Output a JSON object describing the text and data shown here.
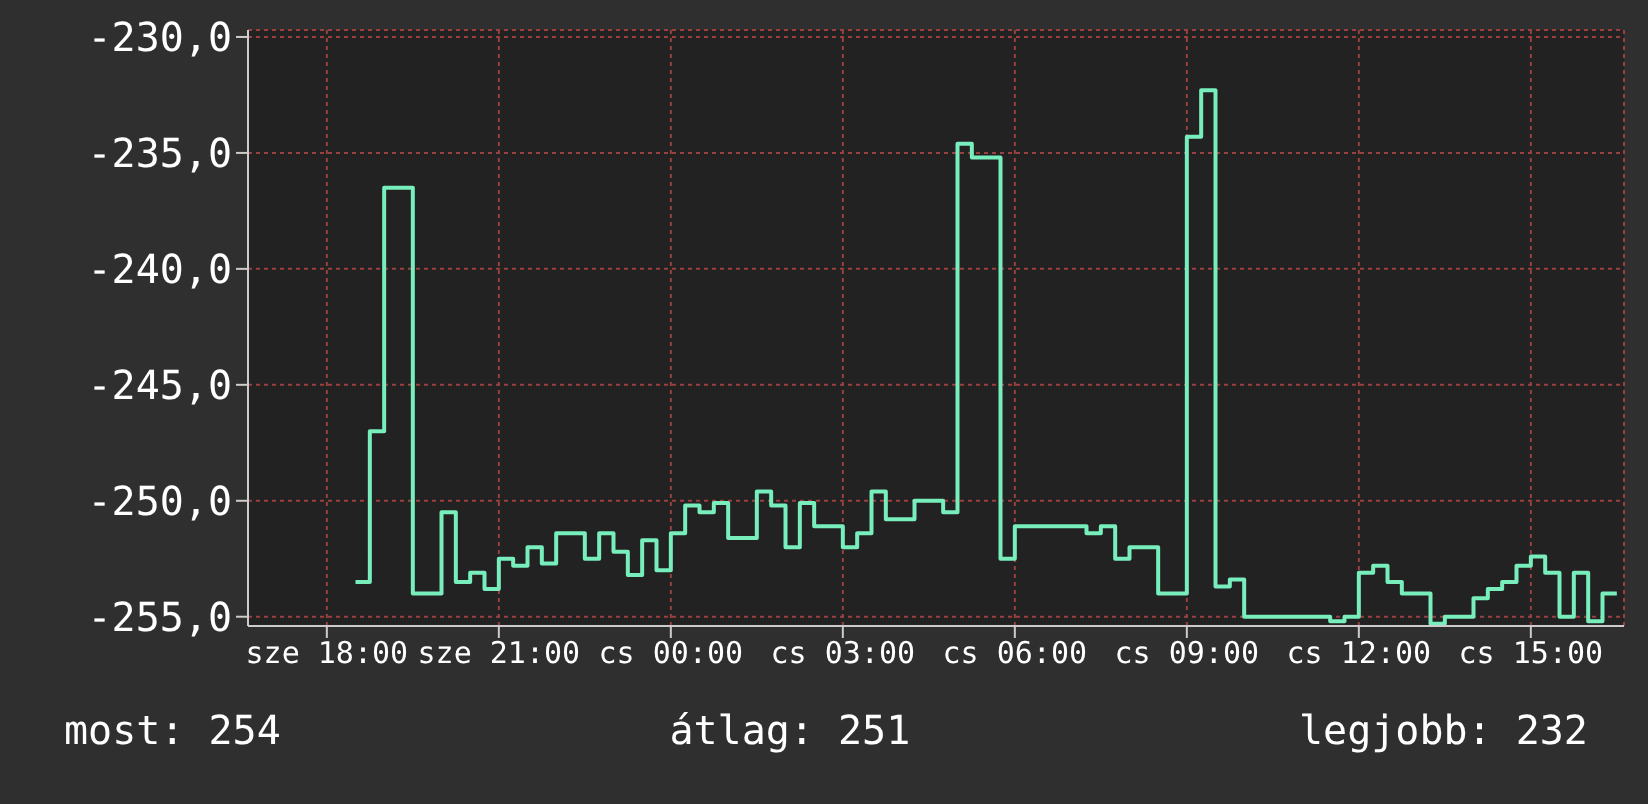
{
  "chart_data": {
    "type": "step",
    "categories": [
      null,
      null,
      null,
      null,
      null,
      "sze 18:00",
      null,
      null,
      null,
      null,
      null,
      null,
      null,
      null,
      null,
      null,
      null,
      "sze 21:00",
      null,
      null,
      null,
      null,
      null,
      null,
      null,
      null,
      null,
      null,
      null,
      "cs 00:00",
      null,
      null,
      null,
      null,
      null,
      null,
      null,
      null,
      null,
      null,
      null,
      "cs 03:00",
      null,
      null,
      null,
      null,
      null,
      null,
      null,
      null,
      null,
      null,
      null,
      "cs 06:00",
      null,
      null,
      null,
      null,
      null,
      null,
      null,
      null,
      null,
      null,
      null,
      "cs 09:00",
      null,
      null,
      null,
      null,
      null,
      null,
      null,
      null,
      null,
      null,
      null,
      "cs 12:00",
      null,
      null,
      null,
      null,
      null,
      null,
      null,
      null,
      null,
      null,
      null,
      "cs 15:00",
      null,
      null,
      null,
      null,
      null,
      null
    ],
    "values": [
      null,
      null,
      null,
      null,
      null,
      null,
      null,
      -253.5,
      -247.0,
      -236.5,
      -236.5,
      -254.0,
      -254.0,
      -250.5,
      -253.5,
      -253.1,
      -253.8,
      -252.5,
      -252.8,
      -252.0,
      -252.7,
      -251.4,
      -251.4,
      -252.5,
      -251.4,
      -252.2,
      -253.2,
      -251.7,
      -253.0,
      -251.4,
      -250.2,
      -250.5,
      -250.1,
      -251.6,
      -251.6,
      -249.6,
      -250.2,
      -252.0,
      -250.1,
      -251.1,
      -251.1,
      -252.0,
      -251.4,
      -249.6,
      -250.8,
      -250.8,
      -250.0,
      -250.0,
      -250.5,
      -234.6,
      -235.2,
      -235.2,
      -252.5,
      -251.1,
      -251.1,
      -251.1,
      -251.1,
      -251.1,
      -251.4,
      -251.1,
      -252.5,
      -252.0,
      -252.0,
      -254.0,
      -254.0,
      -234.3,
      -232.3,
      -253.7,
      -253.4,
      -255.0,
      -255.0,
      -255.0,
      -255.0,
      -255.0,
      -255.0,
      -255.2,
      -255.0,
      -253.1,
      -252.8,
      -253.5,
      -254.0,
      -254.0,
      -255.3,
      -255.0,
      -255.0,
      -254.2,
      -253.8,
      -253.5,
      -252.8,
      -252.4,
      -253.1,
      -255.0,
      -253.1,
      -255.2,
      -254.0,
      -254.0
    ],
    "color": "#77eebb",
    "ylim": [
      -255.4,
      -229.7
    ],
    "yticks": [
      {
        "value": -255,
        "label": "-255,0"
      },
      {
        "value": -250,
        "label": "-250,0"
      },
      {
        "value": -245,
        "label": "-245,0"
      },
      {
        "value": -240,
        "label": "-240,0"
      },
      {
        "value": -235,
        "label": "-235,0"
      },
      {
        "value": -230,
        "label": "-230,0"
      }
    ],
    "grid": true,
    "annotations": [
      "most: 254",
      "átlag: 251",
      "legjobb: 232"
    ]
  }
}
